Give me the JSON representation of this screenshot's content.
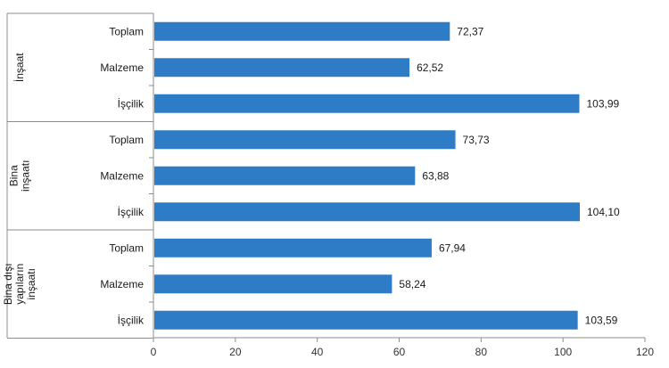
{
  "chart_data": {
    "type": "bar",
    "orientation": "horizontal",
    "title": "",
    "xlabel": "",
    "ylabel": "",
    "xlim": [
      0,
      120
    ],
    "xticks": [
      0,
      20,
      40,
      60,
      80,
      100,
      120
    ],
    "grid": false,
    "legend": "none",
    "bar_color": "#2e7bc6",
    "groups": [
      {
        "label_lines": [
          "İnşaat"
        ],
        "bars": [
          {
            "category": "Toplam",
            "value": 72.37,
            "label": "72,37"
          },
          {
            "category": "Malzeme",
            "value": 62.52,
            "label": "62,52"
          },
          {
            "category": "İşçilik",
            "value": 103.99,
            "label": "103,99"
          }
        ]
      },
      {
        "label_lines": [
          "Bina",
          "inşaatı"
        ],
        "bars": [
          {
            "category": "Toplam",
            "value": 73.73,
            "label": "73,73"
          },
          {
            "category": "Malzeme",
            "value": 63.88,
            "label": "63,88"
          },
          {
            "category": "İşçilik",
            "value": 104.1,
            "label": "104,10"
          }
        ]
      },
      {
        "label_lines": [
          "Bina dışı",
          "yapıların",
          "inşaatı"
        ],
        "bars": [
          {
            "category": "Toplam",
            "value": 67.94,
            "label": "67,94"
          },
          {
            "category": "Malzeme",
            "value": 58.24,
            "label": "58,24"
          },
          {
            "category": "İşçilik",
            "value": 103.59,
            "label": "103,59"
          }
        ]
      }
    ]
  }
}
